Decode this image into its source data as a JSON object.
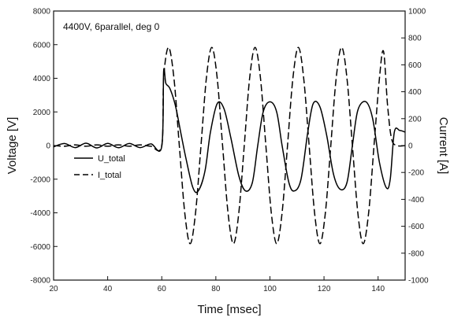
{
  "chart_data": {
    "type": "line",
    "annotation": "4400V, 6parallel, deg 0",
    "xlabel": "Time [msec]",
    "ylabel_left": "Voltage [V]",
    "ylabel_right": "Current [A]",
    "xlim": [
      20,
      150
    ],
    "ylim_left": [
      -8000,
      8000
    ],
    "ylim_right": [
      -1000,
      1000
    ],
    "xticks": [
      20,
      40,
      60,
      80,
      100,
      120,
      140
    ],
    "yticks_left": [
      -8000,
      -6000,
      -4000,
      -2000,
      0,
      2000,
      4000,
      6000,
      8000
    ],
    "yticks_right": [
      -1000,
      -800,
      -600,
      -400,
      -200,
      0,
      200,
      400,
      600,
      800,
      1000
    ],
    "legend_position": "left-middle",
    "grid": false,
    "series": [
      {
        "name": "U_total",
        "style": "solid",
        "axis": "left",
        "x": [
          20,
          24,
          28,
          32,
          36,
          40,
          44,
          48,
          52,
          56,
          60,
          60.7,
          61.5,
          63,
          65,
          67,
          69,
          71.5,
          73.5,
          76,
          78,
          80.5,
          83,
          85.5,
          88.5,
          91,
          93.5,
          95.5,
          97.5,
          100,
          102.5,
          104.5,
          107,
          109,
          111.5,
          114,
          116,
          118.5,
          121,
          123.5,
          126,
          128.5,
          130.5,
          132.5,
          135.5,
          138,
          140.5,
          143,
          144.5,
          146,
          148,
          150
        ],
        "y": [
          -80,
          120,
          -120,
          140,
          -140,
          130,
          -130,
          120,
          -120,
          100,
          -60,
          4400,
          3700,
          3400,
          2400,
          800,
          -800,
          -2500,
          -2700,
          -1500,
          800,
          2500,
          2200,
          500,
          -1800,
          -2700,
          -2200,
          0,
          2000,
          2600,
          2000,
          0,
          -2200,
          -2700,
          -2000,
          800,
          2500,
          2300,
          600,
          -1700,
          -2600,
          -2200,
          0,
          2100,
          2600,
          1600,
          -1000,
          -2500,
          -2000,
          800,
          900,
          800
        ]
      },
      {
        "name": "I_total",
        "style": "dashed",
        "axis": "right",
        "x": [
          20,
          24,
          28,
          32,
          36,
          40,
          44,
          48,
          52,
          56,
          60,
          60.7,
          62.5,
          64.5,
          66.5,
          68.5,
          70.5,
          72.5,
          74.5,
          76.5,
          78.5,
          80.5,
          82.5,
          84.5,
          86.5,
          88.5,
          90.5,
          92.5,
          94.5,
          96.5,
          98.5,
          100.5,
          102.5,
          104.5,
          106.5,
          108.5,
          110.5,
          112.5,
          114.5,
          116.5,
          118.5,
          120.5,
          122.5,
          124.5,
          126.5,
          128.5,
          130.5,
          132.5,
          134.5,
          136.5,
          138.5,
          140.5,
          142,
          143.5,
          145,
          147,
          150
        ],
        "y": [
          0,
          -5,
          5,
          -5,
          5,
          -5,
          5,
          -5,
          5,
          -5,
          0,
          500,
          730,
          500,
          0,
          -500,
          -730,
          -500,
          0,
          500,
          730,
          500,
          0,
          -500,
          -730,
          -500,
          0,
          500,
          730,
          500,
          0,
          -500,
          -730,
          -500,
          0,
          500,
          730,
          500,
          0,
          -500,
          -730,
          -500,
          0,
          500,
          730,
          500,
          0,
          -500,
          -730,
          -500,
          0,
          500,
          700,
          300,
          50,
          0,
          0
        ]
      }
    ]
  }
}
